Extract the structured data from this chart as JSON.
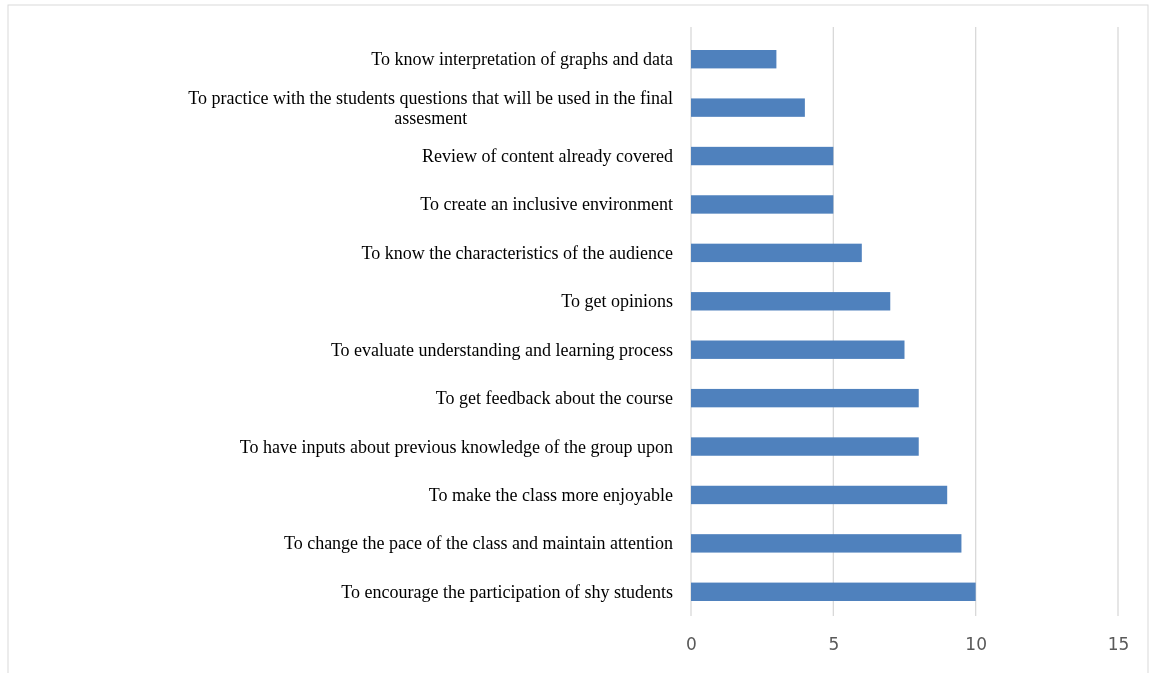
{
  "chart_data": {
    "type": "bar",
    "orientation": "horizontal",
    "categories": [
      "To know interpretation of graphs and data",
      "To practice with the students questions that will be used in the final assesment",
      "Review of content already covered",
      "To create an inclusive environment ",
      "To know the characteristics of the audience",
      "To get opinions",
      "To evaluate understanding and learning process",
      "To get feedback about the course",
      "To have inputs about previous knowledge of the group upon",
      "To make the class more enjoyable",
      "To change the pace of the class and maintain attention ",
      "To encourage the participation of shy students"
    ],
    "values": [
      3,
      4,
      5,
      5,
      6,
      7,
      7.5,
      8,
      8,
      9,
      9.5,
      10
    ],
    "color": "#4f81bd",
    "xlim": [
      0,
      15
    ],
    "xticks": [
      0,
      5,
      10,
      15
    ],
    "grid": "x"
  }
}
